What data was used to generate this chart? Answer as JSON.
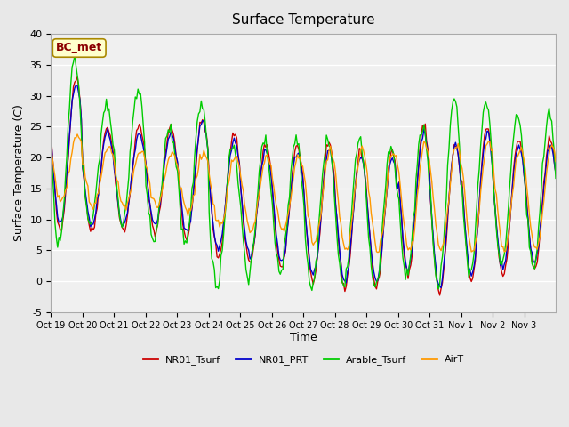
{
  "title": "Surface Temperature",
  "ylabel": "Surface Temperature (C)",
  "xlabel": "Time",
  "annotation": "BC_met",
  "ylim": [
    -5,
    40
  ],
  "series_colors": {
    "NR01_Tsurf": "#cc0000",
    "NR01_PRT": "#0000cc",
    "Arable_Tsurf": "#00cc00",
    "AirT": "#ff9900"
  },
  "tick_labels": [
    "Oct 19",
    "Oct 20",
    "Oct 21",
    "Oct 22",
    "Oct 23",
    "Oct 24",
    "Oct 25",
    "Oct 26",
    "Oct 27",
    "Oct 28",
    "Oct 29",
    "Oct 30",
    "Oct 31",
    "Nov 1",
    "Nov 2",
    "Nov 3"
  ],
  "bg_color": "#e8e8e8",
  "plot_bg": "#f0f0f0",
  "grid_color": "#ffffff",
  "linewidth": 1.0,
  "n_days": 16,
  "hours_per_day": 24,
  "nr01_max": [
    33,
    25,
    25,
    25,
    26,
    24,
    22,
    22,
    22,
    21,
    21,
    25,
    22,
    25,
    23,
    23
  ],
  "nr01_min": [
    8,
    8,
    8,
    8,
    7,
    4,
    3,
    2,
    0,
    -1,
    -1,
    1,
    -2,
    0,
    1,
    2
  ],
  "nrt_max": [
    32,
    24,
    24,
    24,
    26,
    23,
    21,
    21,
    21,
    20,
    20,
    24,
    22,
    24,
    22,
    22
  ],
  "nrt_min": [
    9,
    9,
    9,
    9,
    8,
    5,
    4,
    3,
    1,
    0,
    0,
    2,
    -1,
    1,
    2,
    3
  ],
  "arable_max": [
    36,
    29,
    31,
    25,
    29,
    22,
    23,
    23,
    23,
    23,
    22,
    25,
    29,
    29,
    27,
    27
  ],
  "arable_min": [
    6,
    9,
    9,
    7,
    6,
    -1,
    1,
    1,
    -1,
    -1,
    -1,
    1,
    -1,
    1,
    2,
    2
  ],
  "airt_max": [
    24,
    22,
    21,
    21,
    21,
    20,
    20,
    20,
    21,
    21,
    21,
    22,
    22,
    23,
    22,
    22
  ],
  "airt_min": [
    13,
    12,
    12,
    12,
    11,
    9,
    8,
    8,
    6,
    5,
    5,
    5,
    5,
    5,
    5,
    5
  ]
}
